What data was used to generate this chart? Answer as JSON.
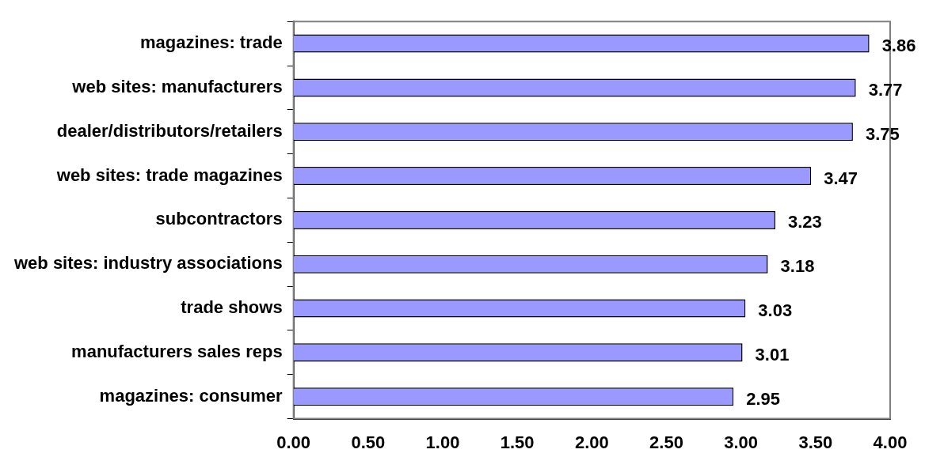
{
  "chart_data": {
    "type": "bar",
    "orientation": "horizontal",
    "categories": [
      "magazines: trade",
      "web sites: manufacturers",
      "dealer/distributors/retailers",
      "web sites: trade magazines",
      "subcontractors",
      "web sites: industry associations",
      "trade shows",
      "manufacturers sales reps",
      "magazines: consumer"
    ],
    "values": [
      3.86,
      3.77,
      3.75,
      3.47,
      3.23,
      3.18,
      3.03,
      3.01,
      2.95
    ],
    "color": "#9999ff",
    "xlim": [
      0,
      4
    ],
    "xticks": [
      {
        "value": 0,
        "label": "0.00"
      },
      {
        "value": 0.5,
        "label": "0.50"
      },
      {
        "value": 1,
        "label": "1.00"
      },
      {
        "value": 1.5,
        "label": "1.50"
      },
      {
        "value": 2,
        "label": "2.00"
      },
      {
        "value": 2.5,
        "label": "2.50"
      },
      {
        "value": 3,
        "label": "3.00"
      },
      {
        "value": 3.5,
        "label": "3.50"
      },
      {
        "value": 4,
        "label": "4.00"
      }
    ],
    "data_labels": true,
    "grid": false,
    "legend": false
  }
}
